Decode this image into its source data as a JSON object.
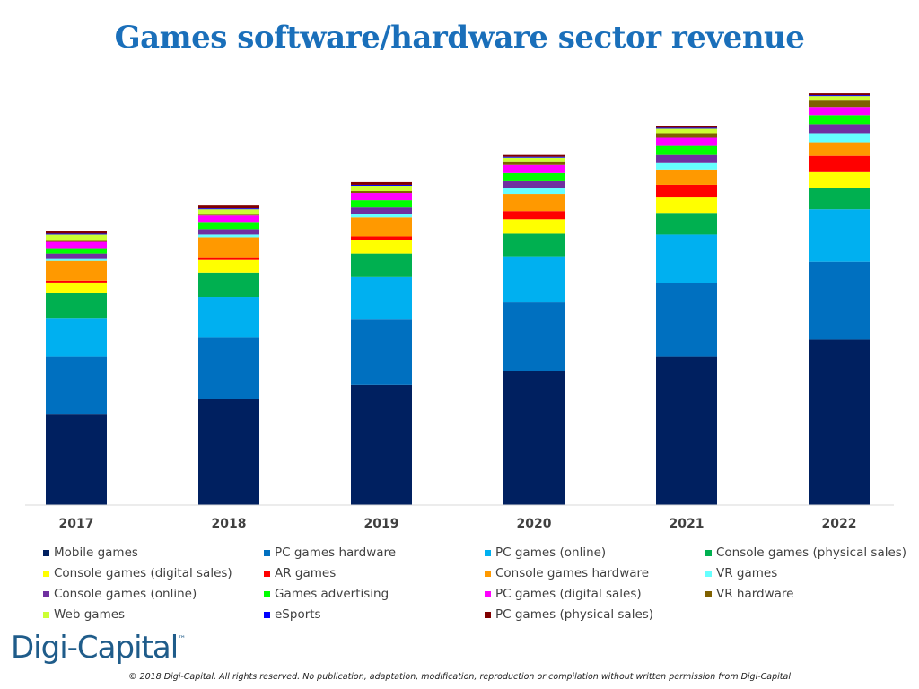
{
  "header": {
    "title": "Games software/hardware sector revenue"
  },
  "footer": {
    "logo": "Digi-Capital",
    "logo_tm": "™",
    "copyright": "© 2018 Digi-Capital. All rights reserved. No publication, adaptation, modification, reproduction or compilation without written permission from Digi-Capital"
  },
  "chart_data": {
    "type": "bar",
    "stacked": true,
    "title": "Games software/hardware sector revenue",
    "xlabel": "",
    "ylabel": "",
    "categories": [
      "2017",
      "2018",
      "2019",
      "2020",
      "2021",
      "2022"
    ],
    "ylim": [
      0,
      465
    ],
    "grid": false,
    "legend_position": "bottom",
    "series": [
      {
        "name": "Mobile games",
        "color": "#002060",
        "values": [
          100,
          117,
          133,
          148,
          164,
          183
        ]
      },
      {
        "name": "PC games hardware",
        "color": "#0070c0",
        "values": [
          64,
          68,
          72,
          76,
          81,
          86
        ]
      },
      {
        "name": "PC games (online)",
        "color": "#00b0f0",
        "values": [
          42,
          45,
          47,
          51,
          54,
          58
        ]
      },
      {
        "name": "Console games (physical sales)",
        "color": "#00b050",
        "values": [
          28,
          27,
          26,
          25,
          24,
          23
        ]
      },
      {
        "name": "Console games (digital sales)",
        "color": "#ffff00",
        "values": [
          12,
          14,
          15,
          16,
          17,
          18
        ]
      },
      {
        "name": "AR games",
        "color": "#ff0000",
        "values": [
          2,
          2,
          4,
          9,
          14,
          18
        ]
      },
      {
        "name": "Console games hardware",
        "color": "#ff9900",
        "values": [
          22,
          23,
          21,
          19,
          17,
          15
        ]
      },
      {
        "name": "VR games",
        "color": "#66ffff",
        "values": [
          2,
          3,
          4,
          6,
          7,
          10
        ]
      },
      {
        "name": "Console games (online)",
        "color": "#7030a0",
        "values": [
          6,
          6,
          7,
          8,
          9,
          10
        ]
      },
      {
        "name": "Games advertising",
        "color": "#00ff00",
        "values": [
          6,
          7,
          8,
          9,
          10,
          10
        ]
      },
      {
        "name": "PC games (digital sales)",
        "color": "#ff00ff",
        "values": [
          7,
          8,
          8,
          9,
          9,
          9
        ]
      },
      {
        "name": "VR hardware",
        "color": "#7f6000",
        "values": [
          1,
          1,
          2,
          3,
          5,
          7
        ]
      },
      {
        "name": "Web games",
        "color": "#ccff33",
        "values": [
          7,
          6,
          6,
          5,
          5,
          5
        ]
      },
      {
        "name": "eSports",
        "color": "#0000ff",
        "values": [
          1,
          1,
          1,
          1,
          1,
          1
        ]
      },
      {
        "name": "PC games (physical sales)",
        "color": "#800000",
        "values": [
          3,
          3,
          3,
          2,
          2,
          2
        ]
      }
    ]
  }
}
